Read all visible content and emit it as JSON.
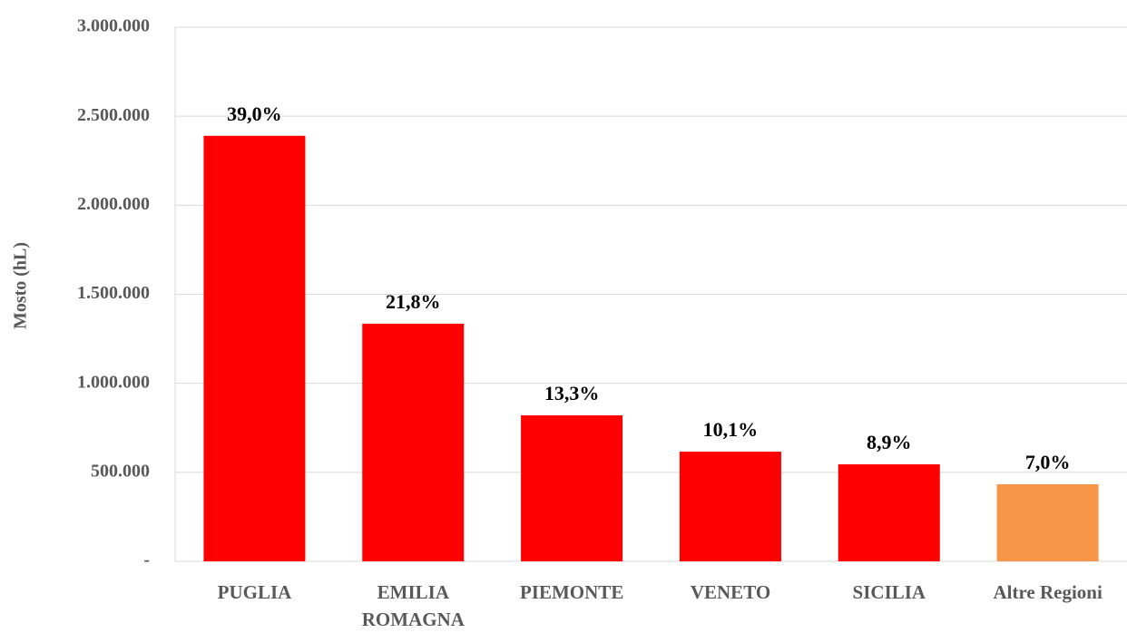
{
  "chart_data": {
    "type": "bar",
    "y_label": "Mosto (hL)",
    "categories": [
      "PUGLIA",
      "EMILIA ROMAGNA",
      "PIEMONTE",
      "VENETO",
      "SICILIA",
      "Altre Regioni"
    ],
    "values": [
      2390000,
      1335000,
      820000,
      616000,
      545000,
      433000
    ],
    "colors": [
      "#ff0000",
      "#ff0000",
      "#ff0000",
      "#ff0000",
      "#ff0000",
      "#f79646"
    ],
    "shares": [
      {
        "value": 39.0,
        "label": "39,0%"
      },
      {
        "value": 21.8,
        "label": "21,8%"
      },
      {
        "value": 13.3,
        "label": "13,3%"
      },
      {
        "value": 10.1,
        "label": "10,1%"
      },
      {
        "value": 8.9,
        "label": "8,9%"
      },
      {
        "value": 7.0,
        "label": "7,0%"
      }
    ],
    "ylim": [
      0,
      3000000
    ],
    "yticks": [
      {
        "value": 0,
        "label": "-"
      },
      {
        "value": 500000,
        "label": "500.000"
      },
      {
        "value": 1000000,
        "label": "1.000.000"
      },
      {
        "value": 1500000,
        "label": "1.500.000"
      },
      {
        "value": 2000000,
        "label": "2.000.000"
      },
      {
        "value": 2500000,
        "label": "2.500.000"
      },
      {
        "value": 3000000,
        "label": "3.000.000"
      }
    ],
    "grid": true
  }
}
